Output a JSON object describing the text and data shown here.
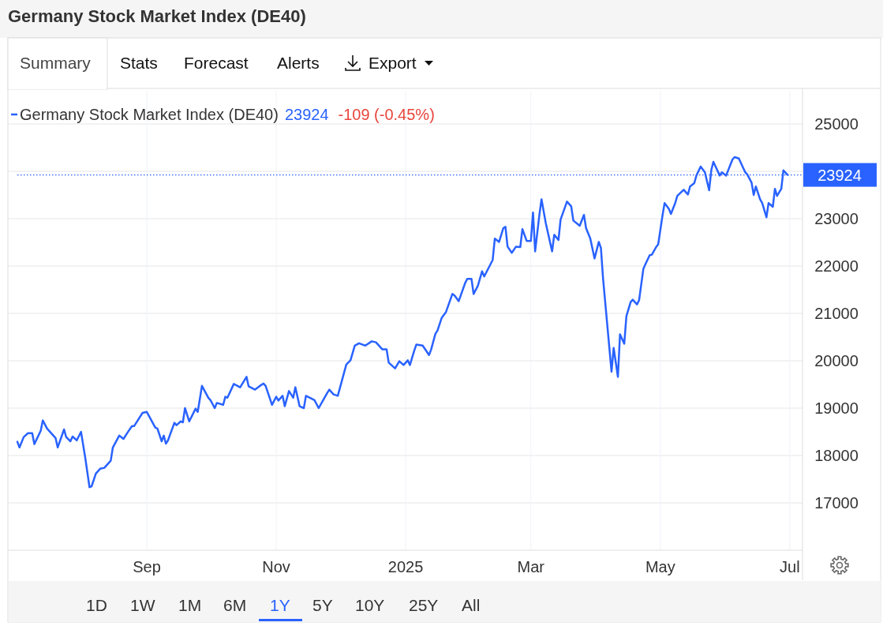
{
  "chart_data": {
    "type": "line",
    "title": "Germany Stock Market Index (DE40)",
    "series": [
      {
        "name": "Germany Stock Market Index (DE40)",
        "color": "#2962ff",
        "x": [
          "2024-07-02",
          "2024-07-03",
          "2024-07-05",
          "2024-07-07",
          "2024-07-09",
          "2024-07-10",
          "2024-07-13",
          "2024-07-14",
          "2024-07-16",
          "2024-07-20",
          "2024-07-21",
          "2024-07-24",
          "2024-07-25",
          "2024-07-27",
          "2024-07-28",
          "2024-07-30",
          "2024-08-01",
          "2024-08-03",
          "2024-08-05",
          "2024-08-06",
          "2024-08-08",
          "2024-08-10",
          "2024-08-12",
          "2024-08-15",
          "2024-08-16",
          "2024-08-19",
          "2024-08-21",
          "2024-08-23",
          "2024-08-25",
          "2024-08-26",
          "2024-08-30",
          "2024-09-01",
          "2024-09-05",
          "2024-09-06",
          "2024-09-08",
          "2024-09-09",
          "2024-09-10",
          "2024-09-11",
          "2024-09-14",
          "2024-09-15",
          "2024-09-17",
          "2024-09-18",
          "2024-09-19",
          "2024-09-21",
          "2024-09-24",
          "2024-09-25",
          "2024-09-27",
          "2024-09-30",
          "2024-10-01",
          "2024-10-03",
          "2024-10-04",
          "2024-10-07",
          "2024-10-08",
          "2024-10-09",
          "2024-10-12",
          "2024-10-15",
          "2024-10-18",
          "2024-10-19",
          "2024-10-22",
          "2024-10-24",
          "2024-10-26",
          "2024-10-27",
          "2024-10-30",
          "2024-11-01",
          "2024-11-02",
          "2024-11-04",
          "2024-11-05",
          "2024-11-07",
          "2024-11-09",
          "2024-11-10",
          "2024-11-12",
          "2024-11-14",
          "2024-11-15",
          "2024-11-19",
          "2024-11-21",
          "2024-11-25",
          "2024-11-26",
          "2024-11-28",
          "2024-11-30",
          "2024-12-02",
          "2024-12-04",
          "2024-12-06",
          "2024-12-08",
          "2024-12-10",
          "2024-12-13",
          "2024-12-16",
          "2024-12-18",
          "2024-12-21",
          "2024-12-23",
          "2024-12-24",
          "2024-12-27",
          "2024-12-29",
          "2024-12-31",
          "2025-01-02",
          "2025-01-03",
          "2025-01-05",
          "2025-01-06",
          "2025-01-09",
          "2025-01-12",
          "2025-01-13",
          "2025-01-15",
          "2025-01-16",
          "2025-01-18",
          "2025-01-20",
          "2025-01-23",
          "2025-01-24",
          "2025-01-26",
          "2025-01-29",
          "2025-01-30",
          "2025-02-01",
          "2025-02-02",
          "2025-02-04",
          "2025-02-06",
          "2025-02-07",
          "2025-02-11",
          "2025-02-12",
          "2025-02-14",
          "2025-02-16",
          "2025-02-17",
          "2025-02-18",
          "2025-02-20",
          "2025-02-22",
          "2025-02-24",
          "2025-02-25",
          "2025-02-27",
          "2025-03-01",
          "2025-03-02",
          "2025-03-03",
          "2025-03-05",
          "2025-03-06",
          "2025-03-08",
          "2025-03-11",
          "2025-03-12",
          "2025-03-14",
          "2025-03-15",
          "2025-03-18",
          "2025-03-20",
          "2025-03-21",
          "2025-03-24",
          "2025-03-26",
          "2025-03-27",
          "2025-03-29",
          "2025-03-31",
          "2025-04-02",
          "2025-04-03",
          "2025-04-04",
          "2025-04-08",
          "2025-04-09",
          "2025-04-11",
          "2025-04-12",
          "2025-04-14",
          "2025-04-15",
          "2025-04-17",
          "2025-04-18",
          "2025-04-20",
          "2025-04-21",
          "2025-04-23",
          "2025-04-24",
          "2025-04-26",
          "2025-04-27",
          "2025-04-29",
          "2025-04-30",
          "2025-05-02",
          "2025-05-03",
          "2025-05-05",
          "2025-05-06",
          "2025-05-08",
          "2025-05-09",
          "2025-05-12",
          "2025-05-14",
          "2025-05-15",
          "2025-05-17",
          "2025-05-18",
          "2025-05-20",
          "2025-05-22",
          "2025-05-24",
          "2025-05-25",
          "2025-05-26",
          "2025-05-29",
          "2025-05-30",
          "2025-06-01",
          "2025-06-04",
          "2025-06-05",
          "2025-06-07",
          "2025-06-10",
          "2025-06-11",
          "2025-06-13",
          "2025-06-14",
          "2025-06-15",
          "2025-06-17",
          "2025-06-18",
          "2025-06-20",
          "2025-06-21",
          "2025-06-23",
          "2025-06-24",
          "2025-06-25",
          "2025-06-27",
          "2025-06-28",
          "2025-06-30"
        ],
        "values": [
          18290,
          18170,
          18390,
          18470,
          18470,
          18240,
          18520,
          18740,
          18570,
          18370,
          18170,
          18550,
          18390,
          18300,
          18400,
          18320,
          18500,
          17950,
          17330,
          17350,
          17620,
          17720,
          17740,
          17890,
          18170,
          18420,
          18350,
          18490,
          18620,
          18620,
          18900,
          18920,
          18590,
          18570,
          18300,
          18420,
          18250,
          18320,
          18690,
          18640,
          18720,
          18700,
          19000,
          18720,
          18990,
          18920,
          19470,
          19220,
          19170,
          19000,
          19110,
          19070,
          19240,
          19220,
          19510,
          19440,
          19660,
          19460,
          19390,
          19460,
          19520,
          19470,
          19070,
          19240,
          19160,
          19260,
          19040,
          19360,
          19220,
          19440,
          19040,
          19000,
          19260,
          19170,
          19000,
          19320,
          19390,
          19290,
          19260,
          19590,
          19920,
          20010,
          20320,
          20370,
          20320,
          20410,
          20390,
          20240,
          20240,
          19960,
          19840,
          19990,
          19910,
          20010,
          19910,
          20210,
          20340,
          20320,
          20120,
          20240,
          20570,
          20640,
          20910,
          21030,
          21410,
          21380,
          21260,
          21640,
          21730,
          21730,
          21410,
          21580,
          21890,
          21780,
          22130,
          22580,
          22510,
          22800,
          22830,
          22410,
          22280,
          22410,
          22400,
          22780,
          22530,
          22530,
          23130,
          22310,
          23080,
          23410,
          22910,
          22310,
          22660,
          22550,
          22980,
          23360,
          23260,
          22960,
          22850,
          23080,
          22800,
          22580,
          22160,
          22510,
          22380,
          21740,
          19770,
          20270,
          19660,
          20560,
          20360,
          20940,
          21240,
          21290,
          21190,
          21280,
          21940,
          22040,
          22230,
          22240,
          22400,
          22460,
          23060,
          23330,
          23210,
          23100,
          23330,
          23480,
          23610,
          23510,
          23680,
          23750,
          23910,
          24100,
          23980,
          23600,
          24020,
          24200,
          23910,
          23980,
          23910,
          24250,
          24300,
          24270,
          23980,
          23930,
          23760,
          23500,
          23680,
          23410,
          23330,
          23030,
          23330,
          23250,
          23630,
          23480,
          23630,
          24020,
          23924
        ]
      }
    ],
    "xlim": [
      "2024-07-02",
      "2025-07-07"
    ],
    "xticks": [
      {
        "value": "2024-09-01",
        "label": "Sep"
      },
      {
        "value": "2024-11-01",
        "label": "Nov"
      },
      {
        "value": "2025-01-01",
        "label": "2025"
      },
      {
        "value": "2025-03-01",
        "label": "Mar"
      },
      {
        "value": "2025-05-01",
        "label": "May"
      },
      {
        "value": "2025-07-01",
        "label": "Jul"
      }
    ],
    "ylim": [
      16000,
      25700
    ],
    "yticks": [
      17000,
      18000,
      19000,
      20000,
      21000,
      22000,
      23000,
      {
        "value": 24000,
        "label": null
      },
      25000
    ],
    "ref_lines": [
      {
        "axis": "y",
        "value": 23924,
        "label": "23924",
        "color": "#2962ff",
        "line_style": "dotted"
      }
    ],
    "annotations": [
      "23924",
      "-109 (-0.45%)",
      "Summary",
      "Stats",
      "Forecast",
      "Alerts",
      "Export",
      "1D",
      "1W",
      "1M",
      "6M",
      "1Y",
      "5Y",
      "10Y",
      "25Y",
      "All"
    ],
    "grid": true,
    "legend": "top left",
    "marker": "none",
    "line_style": "solid"
  }
}
